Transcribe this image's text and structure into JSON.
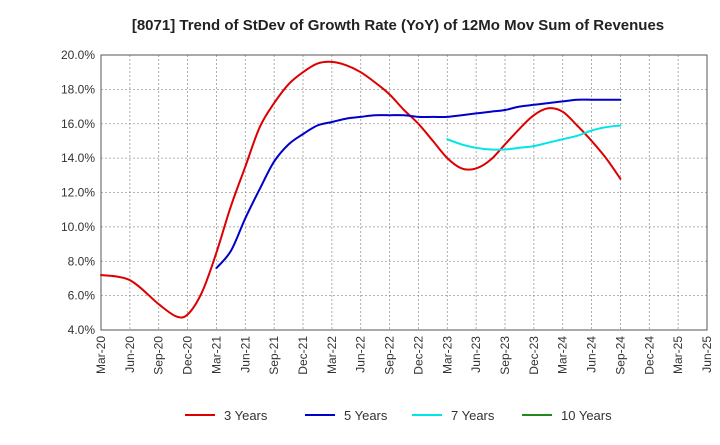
{
  "chart_data": {
    "type": "line",
    "title": "[8071]  Trend of StDev of Growth Rate (YoY) of 12Mo Mov Sum of Revenues",
    "xlabel": "",
    "ylabel": "",
    "ylim": [
      4.0,
      20.0
    ],
    "ytick_labels": [
      "4.0%",
      "6.0%",
      "8.0%",
      "10.0%",
      "12.0%",
      "14.0%",
      "16.0%",
      "18.0%",
      "20.0%"
    ],
    "categories": [
      "Mar-20",
      "Jun-20",
      "Sep-20",
      "Dec-20",
      "Mar-21",
      "Jun-21",
      "Sep-21",
      "Dec-21",
      "Mar-22",
      "Jun-22",
      "Sep-22",
      "Dec-22",
      "Mar-23",
      "Jun-23",
      "Sep-23",
      "Dec-23",
      "Mar-24",
      "Jun-24",
      "Sep-24",
      "Dec-24",
      "Mar-25",
      "Jun-25"
    ],
    "grid": true,
    "legend_position": "bottom",
    "series": [
      {
        "name": "3 Years",
        "color": "#dd0000",
        "points": [
          [
            0,
            7.2
          ],
          [
            1,
            6.9
          ],
          [
            2,
            5.5
          ],
          [
            2.6,
            4.8
          ],
          [
            3,
            4.9
          ],
          [
            3.5,
            6.2
          ],
          [
            4,
            8.5
          ],
          [
            4.5,
            11.2
          ],
          [
            5,
            13.5
          ],
          [
            5.5,
            15.8
          ],
          [
            6,
            17.2
          ],
          [
            6.5,
            18.3
          ],
          [
            7,
            19.0
          ],
          [
            7.5,
            19.5
          ],
          [
            8,
            19.6
          ],
          [
            8.5,
            19.4
          ],
          [
            9,
            19.0
          ],
          [
            9.5,
            18.4
          ],
          [
            10,
            17.7
          ],
          [
            10.5,
            16.8
          ],
          [
            11,
            16.0
          ],
          [
            11.5,
            15.0
          ],
          [
            12,
            14.0
          ],
          [
            12.5,
            13.4
          ],
          [
            13,
            13.4
          ],
          [
            13.5,
            13.9
          ],
          [
            14,
            14.8
          ],
          [
            14.5,
            15.7
          ],
          [
            15,
            16.5
          ],
          [
            15.5,
            16.9
          ],
          [
            16,
            16.7
          ],
          [
            16.5,
            15.9
          ],
          [
            17,
            15.0
          ],
          [
            17.5,
            14.0
          ],
          [
            18,
            12.8
          ]
        ]
      },
      {
        "name": "5 Years",
        "color": "#0000cc",
        "points": [
          [
            4,
            7.6
          ],
          [
            4.5,
            8.6
          ],
          [
            5,
            10.5
          ],
          [
            5.5,
            12.2
          ],
          [
            6,
            13.8
          ],
          [
            6.5,
            14.8
          ],
          [
            7,
            15.4
          ],
          [
            7.5,
            15.9
          ],
          [
            8,
            16.1
          ],
          [
            8.5,
            16.3
          ],
          [
            9,
            16.4
          ],
          [
            9.5,
            16.5
          ],
          [
            10,
            16.5
          ],
          [
            10.5,
            16.5
          ],
          [
            11,
            16.4
          ],
          [
            11.5,
            16.4
          ],
          [
            12,
            16.4
          ],
          [
            12.5,
            16.5
          ],
          [
            13,
            16.6
          ],
          [
            13.5,
            16.7
          ],
          [
            14,
            16.8
          ],
          [
            14.5,
            17.0
          ],
          [
            15,
            17.1
          ],
          [
            15.5,
            17.2
          ],
          [
            16,
            17.3
          ],
          [
            16.5,
            17.4
          ],
          [
            17,
            17.4
          ],
          [
            17.5,
            17.4
          ],
          [
            18,
            17.4
          ]
        ]
      },
      {
        "name": "7 Years",
        "color": "#00e5e5",
        "points": [
          [
            12,
            15.1
          ],
          [
            12.5,
            14.8
          ],
          [
            13,
            14.6
          ],
          [
            13.5,
            14.5
          ],
          [
            14,
            14.5
          ],
          [
            14.5,
            14.6
          ],
          [
            15,
            14.7
          ],
          [
            15.5,
            14.9
          ],
          [
            16,
            15.1
          ],
          [
            16.5,
            15.3
          ],
          [
            17,
            15.6
          ],
          [
            17.5,
            15.8
          ],
          [
            18,
            15.9
          ]
        ]
      },
      {
        "name": "10 Years",
        "color": "#228822",
        "points": []
      }
    ]
  }
}
